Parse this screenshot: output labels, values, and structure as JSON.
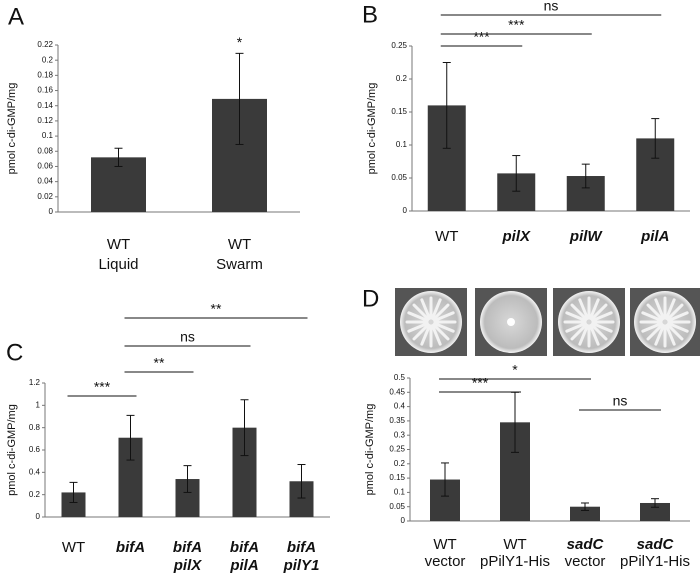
{
  "chart_data": [
    {
      "type": "bar",
      "panel": "A",
      "y_label": "pmol c-di-GMP/mg",
      "color": "#3a3a3a",
      "categories": [
        [
          "WT",
          "Liquid"
        ],
        [
          "WT",
          "Swarm"
        ]
      ],
      "category_styles": [
        [
          "normal",
          "normal"
        ],
        [
          "normal",
          "normal"
        ]
      ],
      "values": [
        0.072,
        0.149
      ],
      "errors": [
        0.012,
        0.06
      ],
      "ylim": [
        0,
        0.22
      ],
      "yticks": [
        0,
        0.02,
        0.04,
        0.06,
        0.08,
        0.1,
        0.12,
        0.14,
        0.16,
        0.18,
        0.2,
        0.22
      ],
      "annotations": [
        {
          "text": "*",
          "bar": 1
        }
      ],
      "comparisons": []
    },
    {
      "type": "bar",
      "panel": "B",
      "y_label": "pmol c-di-GMP/mg",
      "color": "#3a3a3a",
      "categories": [
        [
          "WT"
        ],
        [
          "pilX"
        ],
        [
          "pilW"
        ],
        [
          "pilA"
        ]
      ],
      "category_styles": [
        [
          "normal"
        ],
        [
          "italic"
        ],
        [
          "italic"
        ],
        [
          "italic"
        ]
      ],
      "values": [
        0.16,
        0.057,
        0.053,
        0.11
      ],
      "errors": [
        0.065,
        0.027,
        0.018,
        0.03
      ],
      "ylim": [
        0,
        0.25
      ],
      "yticks": [
        0,
        0.05,
        0.1,
        0.15,
        0.2,
        0.25
      ],
      "annotations": [],
      "comparisons": [
        {
          "from": 0,
          "to": 3,
          "label": "ns"
        },
        {
          "from": 0,
          "to": 2,
          "label": "***"
        },
        {
          "from": 0,
          "to": 1,
          "label": "***"
        }
      ]
    },
    {
      "type": "bar",
      "panel": "C",
      "y_label": "pmol c-di-GMP/mg",
      "color": "#3a3a3a",
      "categories": [
        [
          "WT"
        ],
        [
          "bifA"
        ],
        [
          "bifA",
          "pilX"
        ],
        [
          "bifA",
          "pilA"
        ],
        [
          "bifA",
          "pilY1"
        ]
      ],
      "category_styles": [
        [
          "normal"
        ],
        [
          "italic"
        ],
        [
          "italic",
          "italic"
        ],
        [
          "italic",
          "italic"
        ],
        [
          "italic",
          "italic"
        ]
      ],
      "values": [
        0.22,
        0.71,
        0.34,
        0.8,
        0.32
      ],
      "errors": [
        0.09,
        0.2,
        0.12,
        0.25,
        0.15
      ],
      "ylim": [
        0,
        1.2
      ],
      "yticks": [
        0,
        0.2,
        0.4,
        0.6,
        0.8,
        1,
        1.2
      ],
      "annotations": [],
      "comparisons": [
        {
          "from": 1,
          "to": 4,
          "label": "**"
        },
        {
          "from": 1,
          "to": 3,
          "label": "ns"
        },
        {
          "from": 1,
          "to": 2,
          "label": "**"
        },
        {
          "from": 0,
          "to": 1,
          "label": "***"
        }
      ]
    },
    {
      "type": "bar",
      "panel": "D",
      "y_label": "pmol c-di-GMP/mg",
      "color": "#3a3a3a",
      "categories": [
        [
          "WT",
          "vector"
        ],
        [
          "WT",
          "pPilY1-His"
        ],
        [
          "sadC",
          "vector"
        ],
        [
          "sadC",
          "pPilY1-His"
        ]
      ],
      "category_styles": [
        [
          "normal",
          "normal"
        ],
        [
          "normal",
          "normal"
        ],
        [
          "italic",
          "normal"
        ],
        [
          "italic",
          "normal"
        ]
      ],
      "values": [
        0.145,
        0.345,
        0.05,
        0.063
      ],
      "errors": [
        0.058,
        0.105,
        0.013,
        0.015
      ],
      "ylim": [
        0,
        0.5
      ],
      "yticks": [
        0,
        0.05,
        0.1,
        0.15,
        0.2,
        0.25,
        0.3,
        0.35,
        0.4,
        0.45,
        0.5
      ],
      "annotations": [],
      "comparisons": [
        {
          "from": 0,
          "to": 2,
          "label": "*"
        },
        {
          "from": 0,
          "to": 1,
          "label": "***"
        },
        {
          "from": 2,
          "to": 3,
          "label": "ns"
        }
      ]
    }
  ]
}
